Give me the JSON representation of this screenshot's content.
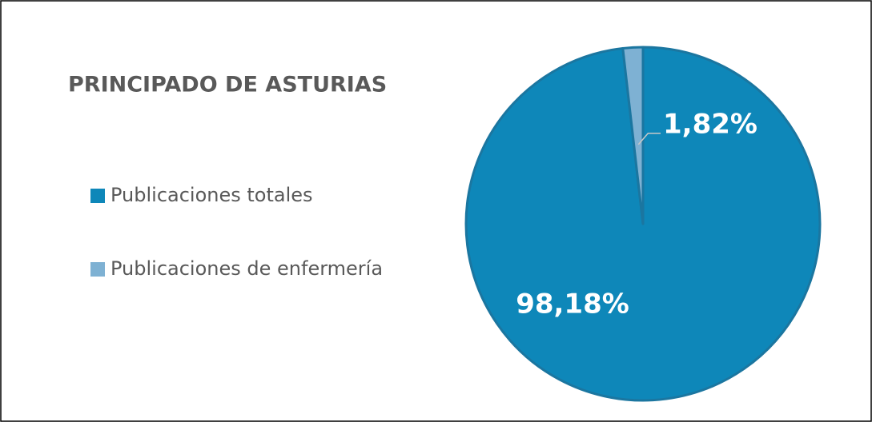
{
  "chart_data": {
    "type": "pie",
    "title": "PRINCIPADO DE ASTURIAS",
    "categories": [
      "Publicaciones totales",
      "Publicaciones de enfermería"
    ],
    "values": [
      98.18,
      1.82
    ],
    "value_labels": [
      "98,18%",
      "1,82%"
    ],
    "colors": [
      "#0e87b9",
      "#7eb1d3"
    ],
    "legend": "left"
  }
}
